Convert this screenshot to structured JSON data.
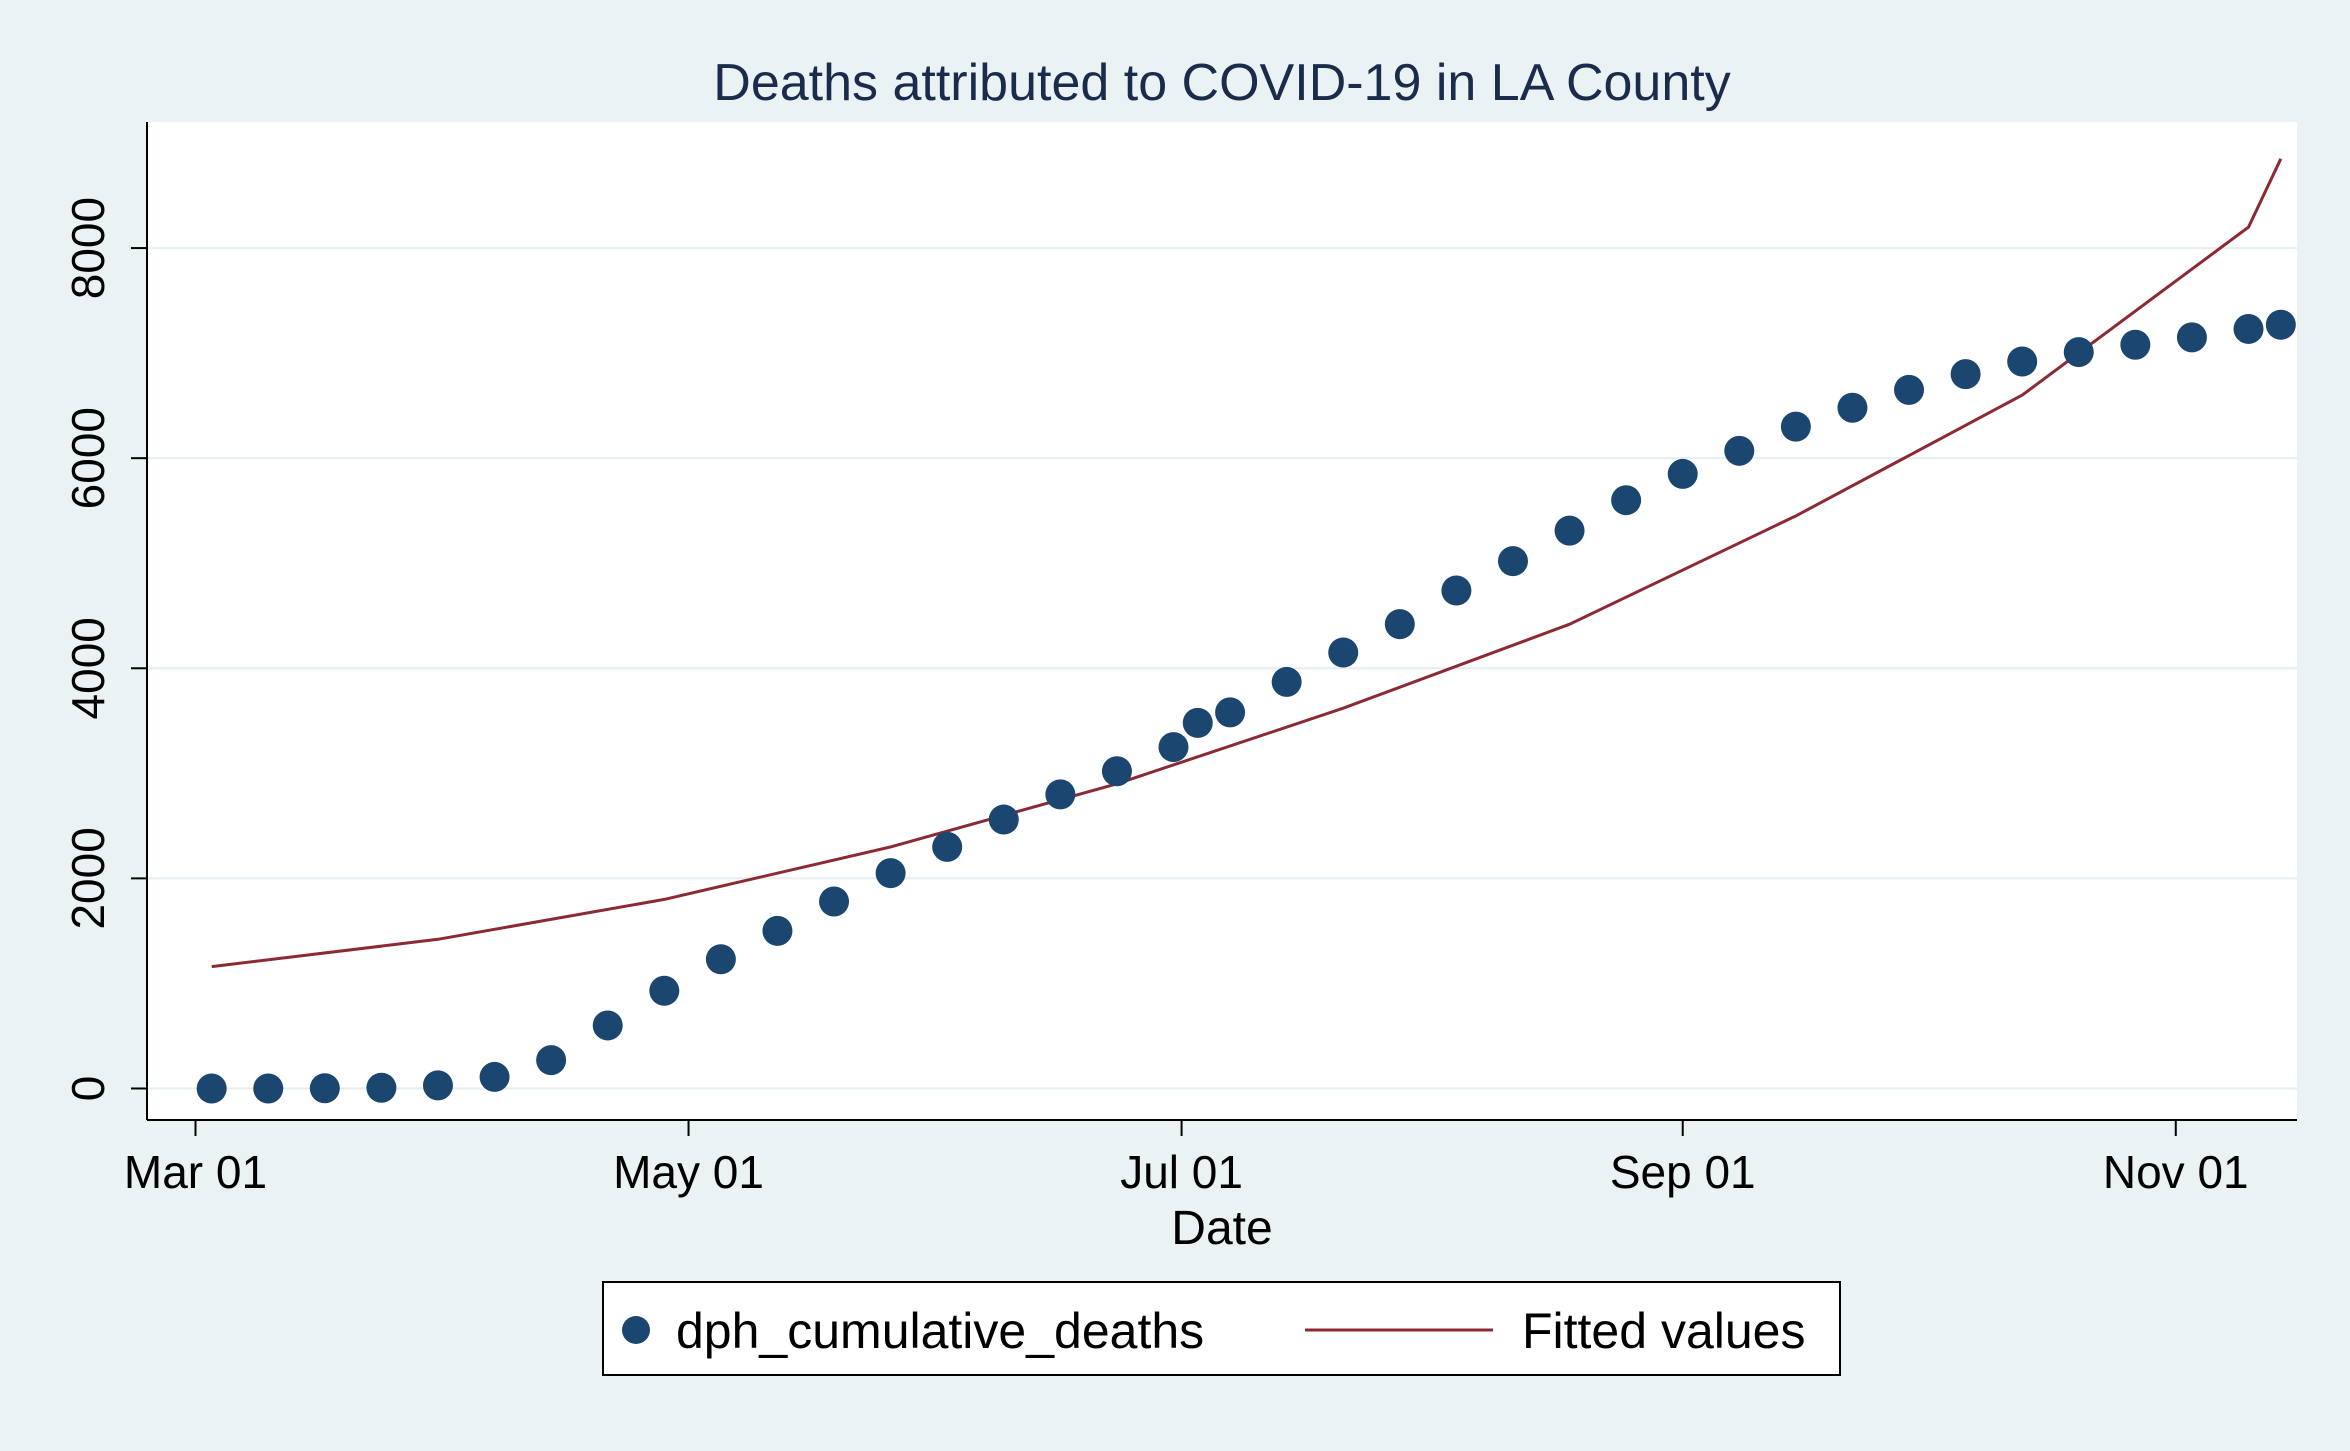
{
  "chart_data": {
    "type": "scatter",
    "title": "Deaths attributed to COVID-19 in LA County",
    "xlabel": "Date",
    "ylabel": "",
    "x_ticks": [
      "Mar 01",
      "May 01",
      "Jul 01",
      "Sep 01",
      "Nov 01"
    ],
    "y_ticks": [
      "0",
      "2000",
      "4000",
      "6000",
      "8000"
    ],
    "ylim": [
      -300,
      9200
    ],
    "xlim": [
      "2020-02-24",
      "2020-11-16"
    ],
    "grid": "horizontal",
    "legend_position": "bottom",
    "series": [
      {
        "name": "dph_cumulative_deaths",
        "kind": "scatter",
        "color": "#1a4670",
        "points": [
          [
            "2020-03-03",
            0
          ],
          [
            "2020-03-10",
            0
          ],
          [
            "2020-03-17",
            2
          ],
          [
            "2020-03-24",
            7
          ],
          [
            "2020-03-31",
            30
          ],
          [
            "2020-04-07",
            110
          ],
          [
            "2020-04-14",
            270
          ],
          [
            "2020-04-21",
            600
          ],
          [
            "2020-04-28",
            930
          ],
          [
            "2020-05-05",
            1230
          ],
          [
            "2020-05-12",
            1500
          ],
          [
            "2020-05-19",
            1780
          ],
          [
            "2020-05-26",
            2050
          ],
          [
            "2020-06-02",
            2300
          ],
          [
            "2020-06-09",
            2560
          ],
          [
            "2020-06-16",
            2800
          ],
          [
            "2020-06-23",
            3020
          ],
          [
            "2020-06-30",
            3250
          ],
          [
            "2020-07-03",
            3480
          ],
          [
            "2020-07-07",
            3580
          ],
          [
            "2020-07-14",
            3870
          ],
          [
            "2020-07-21",
            4150
          ],
          [
            "2020-07-28",
            4420
          ],
          [
            "2020-08-04",
            4740
          ],
          [
            "2020-08-11",
            5020
          ],
          [
            "2020-08-18",
            5310
          ],
          [
            "2020-08-25",
            5600
          ],
          [
            "2020-09-01",
            5850
          ],
          [
            "2020-09-08",
            6070
          ],
          [
            "2020-09-15",
            6300
          ],
          [
            "2020-09-22",
            6480
          ],
          [
            "2020-09-29",
            6650
          ],
          [
            "2020-10-06",
            6800
          ],
          [
            "2020-10-13",
            6920
          ],
          [
            "2020-10-20",
            7010
          ],
          [
            "2020-10-27",
            7080
          ],
          [
            "2020-11-03",
            7150
          ],
          [
            "2020-11-10",
            7230
          ],
          [
            "2020-11-14",
            7270
          ]
        ]
      },
      {
        "name": "Fitted values",
        "kind": "line",
        "color": "#8c2a33",
        "points": [
          [
            "2020-03-03",
            1160
          ],
          [
            "2020-03-31",
            1420
          ],
          [
            "2020-04-28",
            1800
          ],
          [
            "2020-05-26",
            2300
          ],
          [
            "2020-06-23",
            2900
          ],
          [
            "2020-07-21",
            3620
          ],
          [
            "2020-08-18",
            4420
          ],
          [
            "2020-09-15",
            5450
          ],
          [
            "2020-10-13",
            6600
          ],
          [
            "2020-11-10",
            8200
          ],
          [
            "2020-11-14",
            8850
          ]
        ]
      }
    ]
  }
}
